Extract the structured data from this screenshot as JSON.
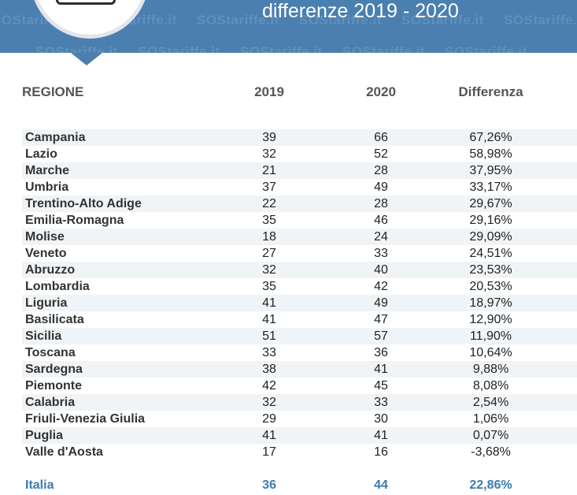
{
  "header": {
    "title": "differenze 2019 - 2020",
    "watermark": "SOStariffe.it",
    "accent_color": "#4a7fb0"
  },
  "table": {
    "columns": [
      "REGIONE",
      "2019",
      "2020",
      "Differenza"
    ],
    "rows": [
      {
        "region": "Campania",
        "y2019": "39",
        "y2020": "66",
        "diff": "67,26%"
      },
      {
        "region": "Lazio",
        "y2019": "32",
        "y2020": "52",
        "diff": "58,98%"
      },
      {
        "region": "Marche",
        "y2019": "21",
        "y2020": "28",
        "diff": "37,95%"
      },
      {
        "region": "Umbria",
        "y2019": "37",
        "y2020": "49",
        "diff": "33,17%"
      },
      {
        "region": "Trentino-Alto Adige",
        "y2019": "22",
        "y2020": "28",
        "diff": "29,67%"
      },
      {
        "region": "Emilia-Romagna",
        "y2019": "35",
        "y2020": "46",
        "diff": "29,16%"
      },
      {
        "region": "Molise",
        "y2019": "18",
        "y2020": "24",
        "diff": "29,09%"
      },
      {
        "region": "Veneto",
        "y2019": "27",
        "y2020": "33",
        "diff": "24,51%"
      },
      {
        "region": "Abruzzo",
        "y2019": "32",
        "y2020": "40",
        "diff": "23,53%"
      },
      {
        "region": "Lombardia",
        "y2019": "35",
        "y2020": "42",
        "diff": "20,53%"
      },
      {
        "region": "Liguria",
        "y2019": "41",
        "y2020": "49",
        "diff": "18,97%"
      },
      {
        "region": "Basilicata",
        "y2019": "41",
        "y2020": "47",
        "diff": "12,90%"
      },
      {
        "region": "Sicilia",
        "y2019": "51",
        "y2020": "57",
        "diff": "11,90%"
      },
      {
        "region": "Toscana",
        "y2019": "33",
        "y2020": "36",
        "diff": "10,64%"
      },
      {
        "region": "Sardegna",
        "y2019": "38",
        "y2020": "41",
        "diff": "9,88%"
      },
      {
        "region": "Piemonte",
        "y2019": "42",
        "y2020": "45",
        "diff": "8,08%"
      },
      {
        "region": "Calabria",
        "y2019": "32",
        "y2020": "33",
        "diff": "2,54%"
      },
      {
        "region": "Friuli-Venezia Giulia",
        "y2019": "29",
        "y2020": "30",
        "diff": "1,06%"
      },
      {
        "region": "Puglia",
        "y2019": "41",
        "y2020": "41",
        "diff": "0,07%"
      },
      {
        "region": "Valle d'Aosta",
        "y2019": "17",
        "y2020": "16",
        "diff": "-3,68%"
      }
    ],
    "total": {
      "region": "Italia",
      "y2019": "36",
      "y2020": "44",
      "diff": "22,86%"
    }
  }
}
